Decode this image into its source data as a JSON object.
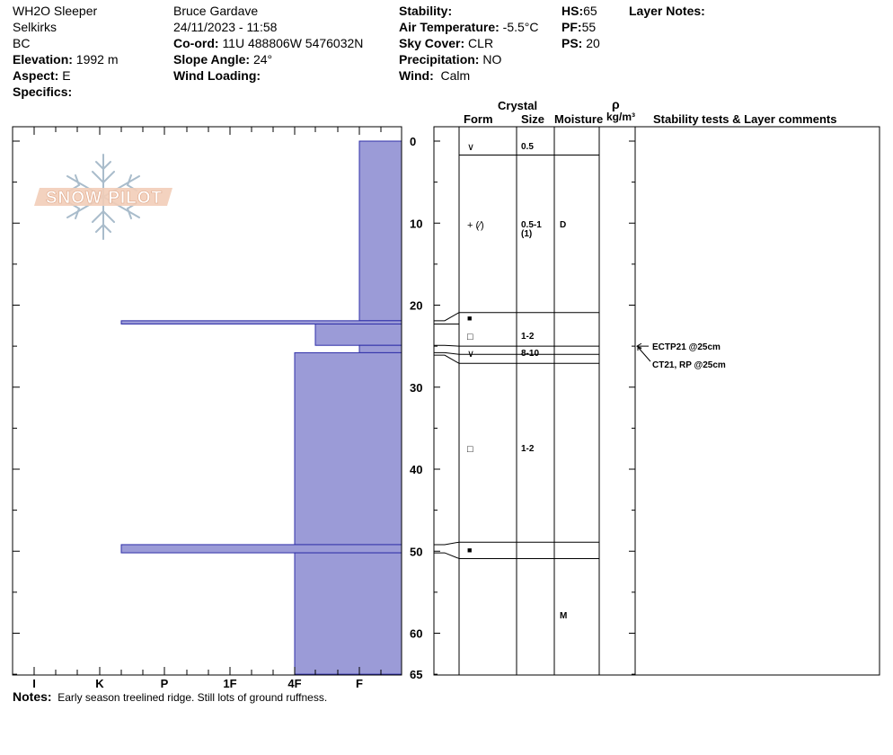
{
  "header": {
    "location": "WH2O Sleeper",
    "range": "Selkirks",
    "province": "BC",
    "elevation_label": "Elevation:",
    "elevation": "1992 m",
    "aspect_label": "Aspect:",
    "aspect": "E",
    "specifics_label": "Specifics:",
    "specifics": "",
    "observer": "Bruce Gardave",
    "datetime": "24/11/2023 - 11:58",
    "coord_label": "Co-ord:",
    "coord": "11U 488806W 5476032N",
    "slope_label": "Slope Angle:",
    "slope": "24°",
    "wind_loading_label": "Wind Loading:",
    "wind_loading": "",
    "stability_label": "Stability:",
    "stability": "",
    "air_temp_label": "Air Temperature:",
    "air_temp": "-5.5°C",
    "sky_label": "Sky Cover:",
    "sky": "CLR",
    "precip_label": "Precipitation:",
    "precip": "NO",
    "wind_label": "Wind:",
    "wind": "Calm",
    "hs_label": "HS:",
    "hs": "65",
    "pf_label": "PF:",
    "pf": "55",
    "ps_label": "PS:",
    "ps": "20",
    "layer_notes_label": "Layer Notes:"
  },
  "logo_text": "SNOW PILOT",
  "columns": {
    "crystal": "Crystal",
    "form": "Form",
    "size": "Size",
    "moisture": "Moisture",
    "rho": "ρ",
    "density_unit": "kg/m³",
    "comments": "Stability tests & Layer comments"
  },
  "notes_label": "Notes:",
  "notes": "Early season treelined ridge.  Still lots of ground ruffness.",
  "chart_data": {
    "type": "snow-profile",
    "depth_axis": {
      "range": [
        0,
        65
      ],
      "ticks": [
        0,
        10,
        20,
        30,
        40,
        50,
        60,
        65
      ],
      "unit": "cm"
    },
    "hardness_axis": {
      "ticks": [
        "I",
        "K",
        "P",
        "1F",
        "4F",
        "F"
      ]
    },
    "hardness_profile": [
      {
        "top": 0,
        "bottom": 21.9,
        "hardness": "F"
      },
      {
        "top": 21.9,
        "bottom": 22.3,
        "hardness": "K+"
      },
      {
        "top": 22.3,
        "bottom": 24.9,
        "hardness": "F+"
      },
      {
        "top": 24.9,
        "bottom": 25.8,
        "hardness": "F"
      },
      {
        "top": 25.8,
        "bottom": 49.2,
        "hardness": "4F"
      },
      {
        "top": 49.2,
        "bottom": 50.2,
        "hardness": "K+"
      },
      {
        "top": 50.2,
        "bottom": 65,
        "hardness": "4F"
      }
    ],
    "layer_boundaries": [
      1.7,
      20.9,
      25.0,
      26.0,
      27.1,
      48.9,
      50.9
    ],
    "layers": [
      {
        "depth": 0.8,
        "form": "∨",
        "size": "0.5",
        "moisture": ""
      },
      {
        "depth": 10.3,
        "form": "+ (∕)",
        "size": "0.5-1\n(1)",
        "moisture": "D"
      },
      {
        "depth": 21.6,
        "form": "■",
        "size": "",
        "moisture": ""
      },
      {
        "depth": 23.9,
        "form": "□",
        "size": "1-2",
        "moisture": ""
      },
      {
        "depth": 26.0,
        "form": "∨",
        "size": "8-10",
        "moisture": ""
      },
      {
        "depth": 37.6,
        "form": "□",
        "size": "1-2",
        "moisture": ""
      },
      {
        "depth": 49.9,
        "form": "■",
        "size": "",
        "moisture": ""
      },
      {
        "depth": 58.0,
        "form": "",
        "size": "",
        "moisture": "M"
      }
    ],
    "stability_tests": [
      {
        "depth": 25,
        "text": "ECTP21 @25cm"
      },
      {
        "depth": 25,
        "text": "CT21, RP @25cm"
      }
    ]
  }
}
